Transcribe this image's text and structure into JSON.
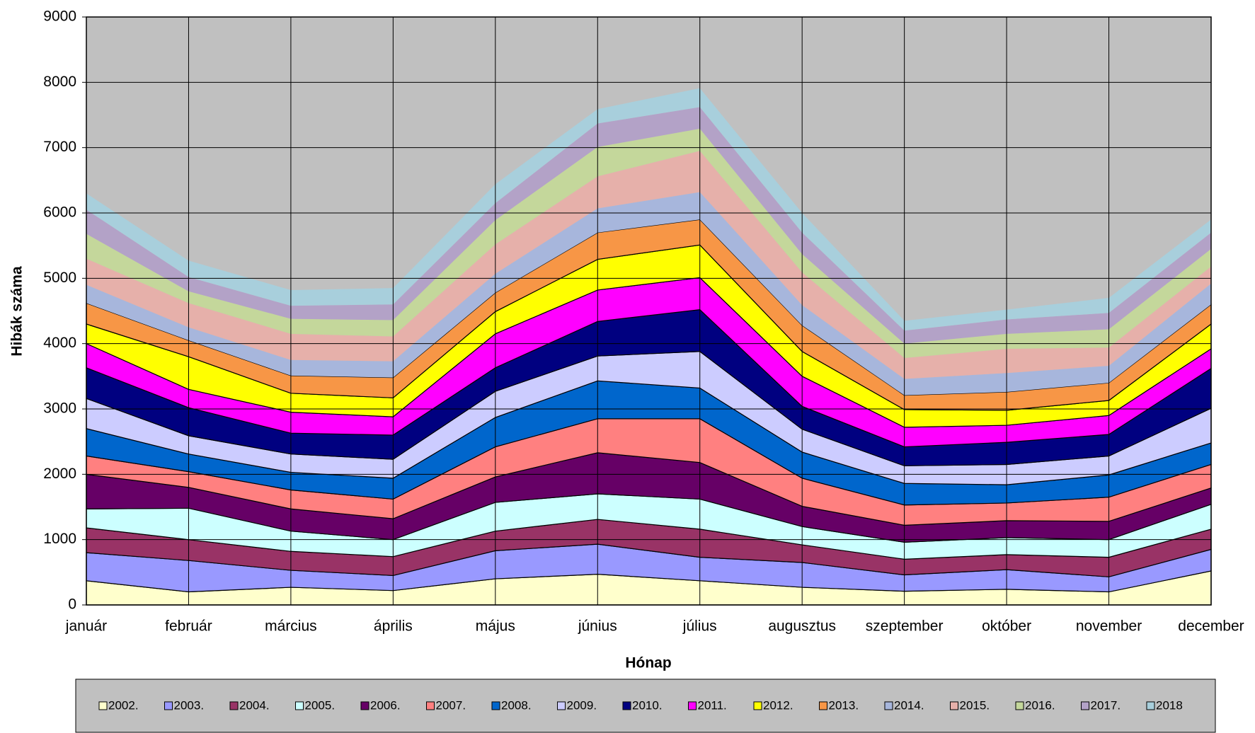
{
  "chart_data": {
    "type": "area",
    "stacked": true,
    "xlabel": "Hónap",
    "ylabel": "Hibák száma",
    "categories": [
      "január",
      "február",
      "március",
      "április",
      "május",
      "június",
      "július",
      "augusztus",
      "szeptember",
      "október",
      "november",
      "december"
    ],
    "ylim": [
      0,
      9000
    ],
    "yticks": [
      0,
      1000,
      2000,
      3000,
      4000,
      5000,
      6000,
      7000,
      8000,
      9000
    ],
    "grid": true,
    "series": [
      {
        "name": "2002.",
        "color": "#ffffcc",
        "values": [
          370,
          200,
          270,
          220,
          400,
          470,
          370,
          270,
          210,
          240,
          200,
          520
        ]
      },
      {
        "name": "2003.",
        "color": "#9999ff",
        "values": [
          430,
          480,
          260,
          230,
          430,
          460,
          360,
          380,
          250,
          300,
          230,
          330
        ]
      },
      {
        "name": "2004.",
        "color": "#993366",
        "values": [
          380,
          320,
          290,
          290,
          300,
          380,
          430,
          270,
          240,
          230,
          300,
          310
        ]
      },
      {
        "name": "2005.",
        "color": "#ccffff",
        "values": [
          290,
          480,
          310,
          260,
          440,
          390,
          460,
          280,
          260,
          260,
          270,
          380
        ]
      },
      {
        "name": "2006.",
        "color": "#660066",
        "values": [
          530,
          320,
          340,
          320,
          390,
          630,
          560,
          310,
          260,
          260,
          280,
          250
        ]
      },
      {
        "name": "2007.",
        "color": "#ff8080",
        "values": [
          280,
          240,
          290,
          300,
          460,
          520,
          670,
          430,
          310,
          270,
          370,
          360
        ]
      },
      {
        "name": "2008.",
        "color": "#0066cc",
        "values": [
          420,
          270,
          270,
          320,
          450,
          580,
          470,
          400,
          330,
          280,
          340,
          330
        ]
      },
      {
        "name": "2009.",
        "color": "#ccccff",
        "values": [
          460,
          280,
          280,
          290,
          400,
          380,
          560,
          350,
          270,
          310,
          290,
          530
        ]
      },
      {
        "name": "2010.",
        "color": "#000080",
        "values": [
          470,
          430,
          320,
          370,
          360,
          530,
          640,
          350,
          290,
          340,
          330,
          610
        ]
      },
      {
        "name": "2011.",
        "color": "#ff00ff",
        "values": [
          370,
          280,
          320,
          280,
          520,
          480,
          490,
          460,
          300,
          260,
          290,
          300
        ]
      },
      {
        "name": "2012.",
        "color": "#ffff00",
        "values": [
          300,
          500,
          290,
          290,
          340,
          470,
          500,
          380,
          270,
          230,
          230,
          380
        ]
      },
      {
        "name": "2013.",
        "color": "#f79646",
        "values": [
          320,
          250,
          270,
          310,
          290,
          410,
          390,
          400,
          220,
          280,
          270,
          300
        ]
      },
      {
        "name": "2014.",
        "color": "#a7b6dc",
        "values": [
          280,
          200,
          240,
          250,
          290,
          370,
          420,
          310,
          250,
          290,
          260,
          320
        ]
      },
      {
        "name": "2015.",
        "color": "#e6b0aa",
        "values": [
          400,
          370,
          400,
          380,
          450,
          490,
          630,
          500,
          320,
          370,
          280,
          260
        ]
      },
      {
        "name": "2016.",
        "color": "#c4d79b",
        "values": [
          380,
          180,
          230,
          250,
          370,
          450,
          340,
          280,
          220,
          230,
          280,
          270
        ]
      },
      {
        "name": "2017.",
        "color": "#b3a2c7",
        "values": [
          370,
          220,
          200,
          240,
          260,
          360,
          330,
          330,
          200,
          220,
          250,
          250
        ]
      },
      {
        "name": "2018",
        "color": "#a8cfdc",
        "values": [
          250,
          250,
          240,
          250,
          290,
          220,
          290,
          300,
          150,
          150,
          230,
          200
        ]
      }
    ]
  }
}
